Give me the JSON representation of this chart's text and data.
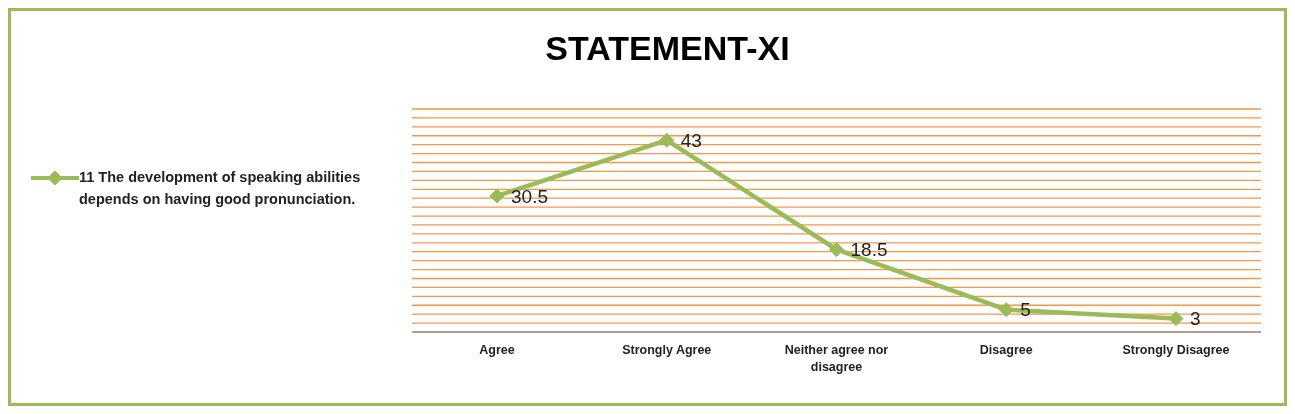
{
  "chart_data": {
    "type": "line",
    "title": "STATEMENT-XI",
    "categories": [
      "Agree",
      "Strongly Agree",
      "Neither agree nor disagree",
      "Disagree",
      "Strongly Disagree"
    ],
    "series": [
      {
        "name": "11 The development of speaking abilities depends on having good pronunciation.",
        "color": "#9bbb59",
        "values": [
          30.5,
          43,
          18.5,
          5,
          3
        ]
      }
    ],
    "ylim": [
      0,
      50
    ],
    "yticks": [
      {
        "value": 0,
        "label": null
      },
      {
        "value": 2,
        "label": null
      },
      {
        "value": 4,
        "label": null
      },
      {
        "value": 6,
        "label": null
      },
      {
        "value": 8,
        "label": null
      },
      {
        "value": 10,
        "label": null
      },
      {
        "value": 12,
        "label": null
      },
      {
        "value": 14,
        "label": null
      },
      {
        "value": 16,
        "label": null
      },
      {
        "value": 18,
        "label": null
      },
      {
        "value": 20,
        "label": null
      },
      {
        "value": 22,
        "label": null
      },
      {
        "value": 24,
        "label": null
      },
      {
        "value": 26,
        "label": null
      },
      {
        "value": 28,
        "label": null
      },
      {
        "value": 30,
        "label": null
      },
      {
        "value": 32,
        "label": null
      },
      {
        "value": 34,
        "label": null
      },
      {
        "value": 36,
        "label": null
      },
      {
        "value": 38,
        "label": null
      },
      {
        "value": 40,
        "label": null
      },
      {
        "value": 42,
        "label": null
      },
      {
        "value": 44,
        "label": null
      },
      {
        "value": 46,
        "label": null
      },
      {
        "value": 48,
        "label": null
      },
      {
        "value": 50,
        "label": null
      }
    ],
    "grid": "y",
    "tick_labels": "x",
    "legend": "left",
    "marker": "diamond",
    "line_style": "solid",
    "data_labels": true
  }
}
